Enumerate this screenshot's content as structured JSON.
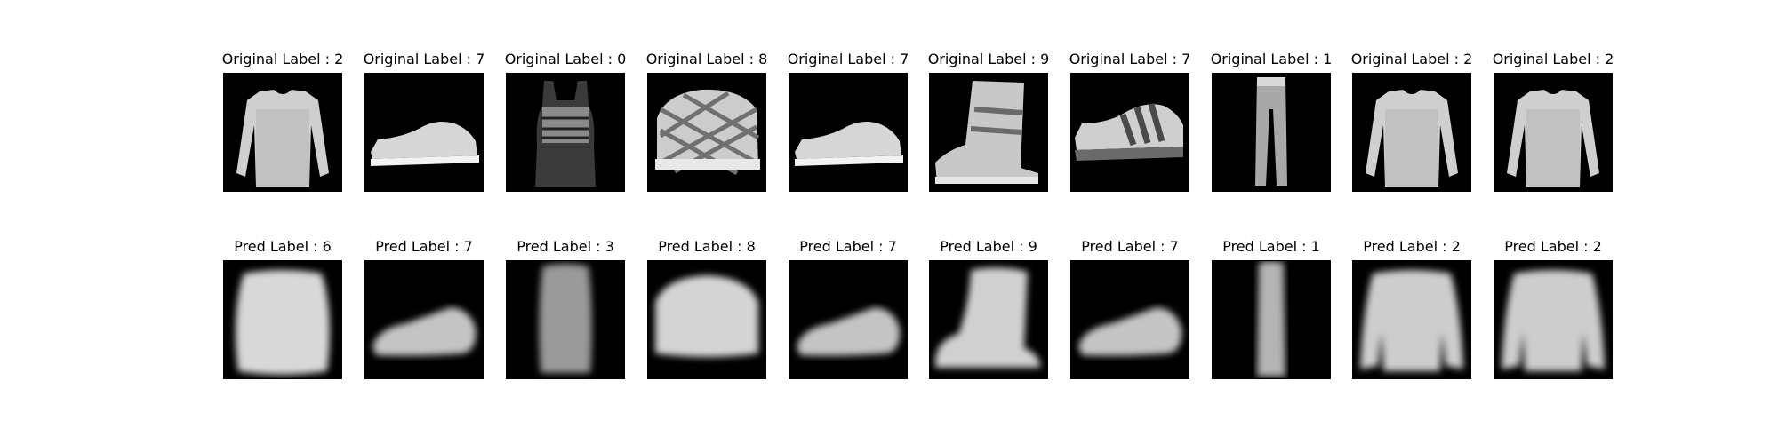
{
  "figure": {
    "original_row": [
      {
        "title": "Original Label : 2",
        "item": "long-sleeve-shirt-icon"
      },
      {
        "title": "Original Label : 7",
        "item": "sneaker-icon"
      },
      {
        "title": "Original Label : 0",
        "item": "tank-top-icon"
      },
      {
        "title": "Original Label : 8",
        "item": "patterned-bag-icon"
      },
      {
        "title": "Original Label : 7",
        "item": "sneaker-icon"
      },
      {
        "title": "Original Label : 9",
        "item": "ankle-boot-icon"
      },
      {
        "title": "Original Label : 7",
        "item": "striped-sneaker-icon"
      },
      {
        "title": "Original Label : 1",
        "item": "trouser-icon"
      },
      {
        "title": "Original Label : 2",
        "item": "long-sleeve-shirt-icon"
      },
      {
        "title": "Original Label : 2",
        "item": "long-sleeve-shirt-icon"
      }
    ],
    "pred_row": [
      {
        "title": "Pred Label : 6",
        "item": "blurry-shirt-icon"
      },
      {
        "title": "Pred Label : 7",
        "item": "blurry-sneaker-icon"
      },
      {
        "title": "Pred Label : 3",
        "item": "blurry-dress-icon"
      },
      {
        "title": "Pred Label : 8",
        "item": "blurry-bag-icon"
      },
      {
        "title": "Pred Label : 7",
        "item": "blurry-sneaker-icon"
      },
      {
        "title": "Pred Label : 9",
        "item": "blurry-ankle-boot-icon"
      },
      {
        "title": "Pred Label : 7",
        "item": "blurry-sneaker-icon"
      },
      {
        "title": "Pred Label : 1",
        "item": "blurry-trouser-icon"
      },
      {
        "title": "Pred Label : 2",
        "item": "blurry-pullover-icon"
      },
      {
        "title": "Pred Label : 2",
        "item": "blurry-pullover-icon"
      }
    ]
  }
}
